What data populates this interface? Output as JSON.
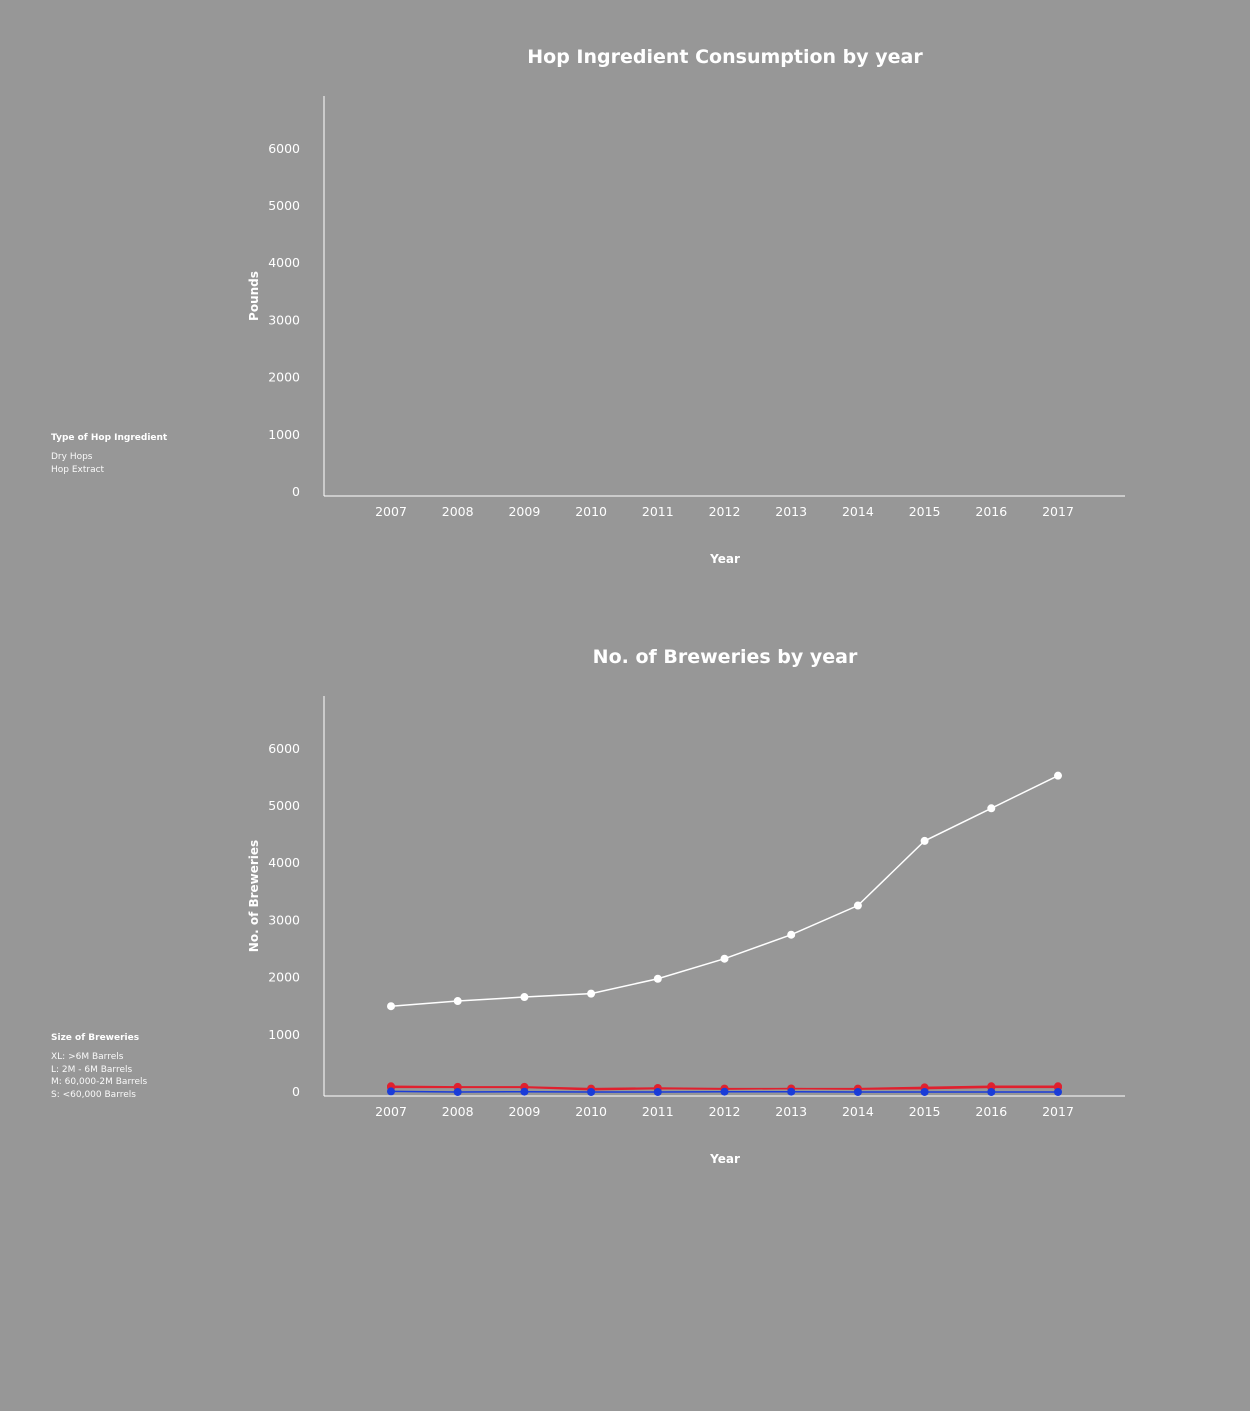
{
  "legend_hops": {
    "title": "Type of Hop Ingredient",
    "items": [
      "Dry Hops",
      "Hop Extract"
    ]
  },
  "legend_breweries": {
    "title": "Size of Breweries",
    "items": [
      "XL: >6M Barrels",
      "L: 2M - 6M Barrels",
      "M: 60,000-2M Barrels",
      "S: <60,000 Barrels"
    ]
  },
  "colors": {
    "background": "#979797",
    "axis": "#ffffff",
    "S": "#ffffff",
    "M": "#e0202e",
    "L": "#e0202e",
    "XL": "#1a3cd8"
  },
  "chart_data": [
    {
      "type": "line",
      "title": "Hop Ingredient Consumption by year",
      "xlabel": "Year",
      "ylabel": "Pounds",
      "x": [
        2007,
        2008,
        2009,
        2010,
        2011,
        2012,
        2013,
        2014,
        2015,
        2016,
        2017
      ],
      "ylim": [
        0,
        7000
      ],
      "yticks": [
        0,
        1000,
        2000,
        3000,
        4000,
        5000,
        6000
      ],
      "series": [],
      "grid": false
    },
    {
      "type": "line",
      "title": "No. of Breweries by year",
      "xlabel": "Year",
      "ylabel": "No. of Breweries",
      "x": [
        2007,
        2008,
        2009,
        2010,
        2011,
        2012,
        2013,
        2014,
        2015,
        2016,
        2017
      ],
      "ylim": [
        0,
        7000
      ],
      "yticks": [
        0,
        1000,
        2000,
        3000,
        4000,
        5000,
        6000
      ],
      "grid": false,
      "series": [
        {
          "key": "S",
          "color": "#ffffff",
          "values": [
            1500,
            1590,
            1660,
            1720,
            1980,
            2330,
            2750,
            3260,
            4390,
            4960,
            5530
          ]
        },
        {
          "key": "M",
          "color": "#e0202e",
          "values": [
            100,
            90,
            90,
            60,
            70,
            60,
            60,
            60,
            80,
            100,
            100
          ]
        },
        {
          "key": "L",
          "color": "#e0202e",
          "values": [
            80,
            80,
            80,
            40,
            60,
            50,
            60,
            50,
            60,
            80,
            80
          ]
        },
        {
          "key": "XL",
          "color": "#1a3cd8",
          "values": [
            10,
            0,
            5,
            0,
            0,
            5,
            5,
            0,
            0,
            0,
            0
          ]
        }
      ]
    }
  ]
}
